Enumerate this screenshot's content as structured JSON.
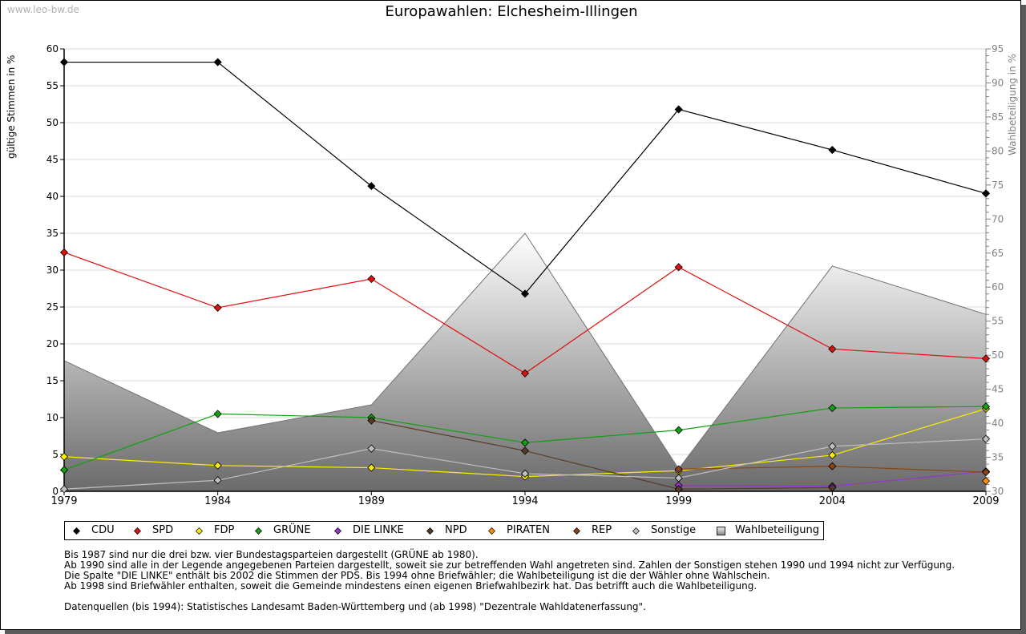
{
  "watermark": "www.leo-bw.de",
  "chart_data": {
    "type": "line",
    "title": "Europawahlen: Elchesheim-Illingen",
    "xlabel": "",
    "ylabel": "gültige Stimmen in %",
    "ylabel_right": "Wahlbeteiligung in %",
    "x": [
      1979,
      1984,
      1989,
      1994,
      1999,
      2004,
      2009
    ],
    "x_tick_labels": [
      "1979",
      "1984",
      "1989",
      "1994",
      "1999",
      "2004",
      "2009"
    ],
    "ylim": [
      0,
      60
    ],
    "y_ticks": [
      "0",
      "5",
      "10",
      "15",
      "20",
      "25",
      "30",
      "35",
      "40",
      "45",
      "50",
      "55",
      "60"
    ],
    "ylim_right": [
      30,
      95
    ],
    "y_ticks_right": [
      "30",
      "35",
      "40",
      "45",
      "50",
      "55",
      "60",
      "65",
      "70",
      "75",
      "80",
      "85",
      "90",
      "95"
    ],
    "grid": true,
    "legend_position": "bottom",
    "area_series": {
      "name": "Wahlbeteiligung",
      "axis": "right",
      "values": [
        49.2,
        38.6,
        42.7,
        67.9,
        33.3,
        63.1,
        56.0
      ]
    },
    "series": [
      {
        "name": "CDU",
        "color": "#000000",
        "values": [
          58.2,
          58.2,
          41.4,
          26.8,
          51.8,
          46.3,
          40.4
        ]
      },
      {
        "name": "SPD",
        "color": "#e01010",
        "values": [
          32.4,
          24.9,
          28.8,
          16.0,
          30.4,
          19.3,
          18.0
        ]
      },
      {
        "name": "FDP",
        "color": "#ffee00",
        "values": [
          4.7,
          3.5,
          3.2,
          2.0,
          2.8,
          4.9,
          11.2
        ]
      },
      {
        "name": "GRÜNE",
        "color": "#10a010",
        "values": [
          2.9,
          10.5,
          10.0,
          6.6,
          8.3,
          11.3,
          11.5
        ]
      },
      {
        "name": "DIE LINKE",
        "color": "#9933cc",
        "values": [
          null,
          null,
          null,
          null,
          0.8,
          0.7,
          2.7
        ]
      },
      {
        "name": "NPD",
        "color": "#5a3b28",
        "values": [
          null,
          null,
          9.6,
          5.5,
          0.3,
          0.5,
          null
        ]
      },
      {
        "name": "PIRATEN",
        "color": "#ff8c00",
        "values": [
          null,
          null,
          null,
          null,
          null,
          null,
          1.4
        ]
      },
      {
        "name": "REP",
        "color": "#8b4513",
        "values": [
          null,
          null,
          null,
          null,
          3.0,
          3.4,
          2.6
        ]
      },
      {
        "name": "Sonstige",
        "color": "#c0c0c0",
        "values": [
          0.3,
          1.5,
          5.8,
          2.4,
          1.8,
          6.1,
          7.1
        ]
      }
    ],
    "legend": [
      "CDU",
      "SPD",
      "FDP",
      "GRÜNE",
      "DIE LINKE",
      "NPD",
      "PIRATEN",
      "REP",
      "Sonstige",
      "Wahlbeteiligung"
    ]
  },
  "notes": [
    "Bis 1987 sind nur die drei bzw. vier Bundestagsparteien dargestellt (GRÜNE ab 1980).",
    "Ab 1990 sind alle in der Legende angegebenen Parteien dargestellt, soweit sie zur betreffenden Wahl angetreten sind. Zahlen der Sonstigen stehen 1990 und 1994 nicht zur Verfügung.",
    "Die Spalte \"DIE LINKE\" enthält bis 2002 die Stimmen der PDS. Bis 1994 ohne Briefwähler; die Wahlbeteiligung ist die der Wähler ohne Wahlschein.",
    "Ab 1998 sind Briefwähler enthalten, soweit die Gemeinde mindestens einen eigenen Briefwahlbezirk hat. Das betrifft auch die Wahlbeteiligung."
  ],
  "source": "Datenquellen (bis 1994): Statistisches Landesamt Baden-Württemberg und (ab 1998) \"Dezentrale Wahldatenerfassung\"."
}
